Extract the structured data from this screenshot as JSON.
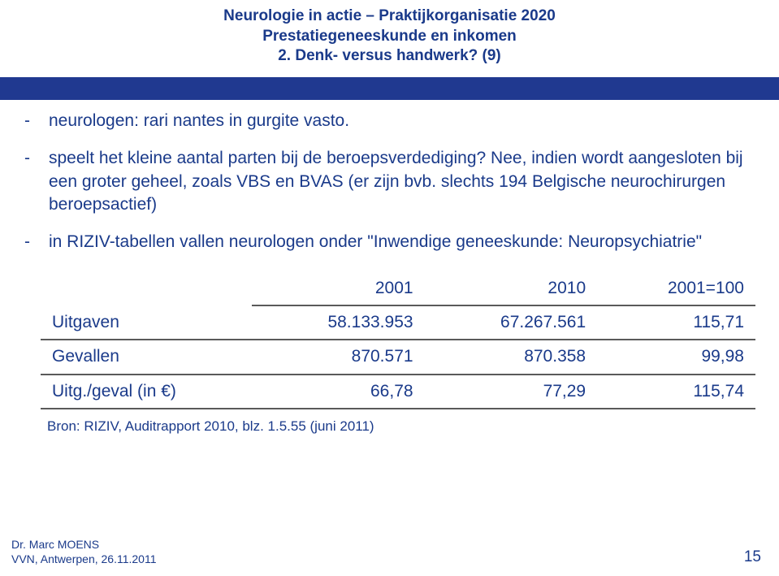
{
  "header": {
    "line1": "Neurologie in actie – Praktijkorganisatie 2020",
    "line2": "Prestatiegeneeskunde en inkomen",
    "line3": "2. Denk- versus handwerk? (9)",
    "color": "#1a3a8a"
  },
  "blue_band_color": "#203990",
  "text_color": "#1a3a8a",
  "bullets": [
    "neurologen: rari nantes in gurgite vasto.",
    "speelt het kleine aantal parten bij de beroepsverdediging? Nee, indien wordt aangesloten bij een groter geheel, zoals VBS en BVAS (er zijn bvb. slechts 194 Belgische neurochirurgen beroepsactief)",
    "in RIZIV-tabellen vallen neurologen onder \"Inwendige geneeskunde: Neuropsychiatrie\""
  ],
  "table": {
    "headers": [
      "",
      "2001",
      "2010",
      "2001=100"
    ],
    "rows": [
      [
        "Uitgaven",
        "58.133.953",
        "67.267.561",
        "115,71"
      ],
      [
        "Gevallen",
        "870.571",
        "870.358",
        "99,98"
      ],
      [
        "Uitg./geval (in €)",
        "66,78",
        "77,29",
        "115,74"
      ]
    ]
  },
  "source": "Bron: RIZIV, Auditrapport 2010, blz. 1.5.55 (juni 2011)",
  "footer": {
    "author": "Dr. Marc MOENS",
    "venue": "VVN, Antwerpen, 26.11.2011",
    "page": "15"
  }
}
